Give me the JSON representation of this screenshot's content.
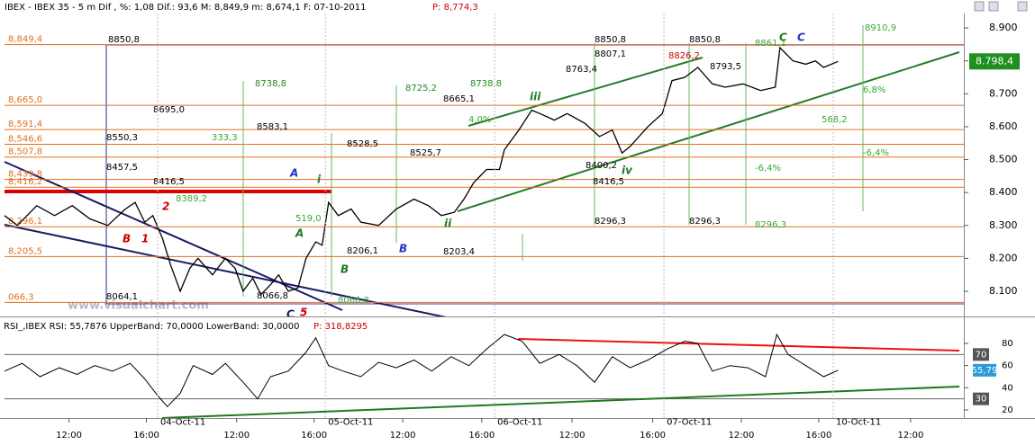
{
  "chart_data": [
    {
      "type": "line",
      "title": "IBEX - IBEX 35 -   5 m Dif , %: 1,08 Dif.: 93,6 M: 8,849,9 m: 8,674,1 F: 07-10-2011",
      "subtitle": "P: 8,774,3",
      "xlim": [
        0,
        595
      ],
      "ylim": [
        8029,
        8944
      ],
      "yticks": [
        {
          "value": 8900,
          "label": "8.900"
        },
        {
          "value": 8800,
          "label": "8.800"
        },
        {
          "value": 8700,
          "label": "8.700"
        },
        {
          "value": 8600,
          "label": "8.600"
        },
        {
          "value": 8500,
          "label": "8.500"
        },
        {
          "value": 8400,
          "label": "8.400"
        },
        {
          "value": 8300,
          "label": "8.300"
        },
        {
          "value": 8200,
          "label": "8.200"
        },
        {
          "value": 8100,
          "label": "8.100"
        }
      ],
      "series": [
        {
          "color": "#000000",
          "x": [
            0,
            8,
            20,
            31,
            42,
            53,
            64,
            75,
            81,
            87,
            92,
            98,
            103,
            109,
            115,
            120,
            129,
            137,
            143,
            148,
            154,
            159,
            165,
            170,
            176,
            182,
            187,
            193,
            197,
            201,
            207,
            215,
            221,
            232,
            243,
            254,
            263,
            271,
            279,
            285,
            291,
            299,
            307,
            310,
            319,
            327,
            332,
            341,
            349,
            360,
            369,
            377,
            383,
            388,
            399,
            408,
            414,
            422,
            430,
            439,
            447,
            458,
            469,
            478,
            481,
            489,
            497,
            503,
            508,
            517
          ],
          "values": [
            8330,
            8300,
            8360,
            8330,
            8360,
            8320,
            8300,
            8350,
            8370,
            8310,
            8330,
            8260,
            8180,
            8100,
            8170,
            8200,
            8150,
            8200,
            8170,
            8100,
            8140,
            8090,
            8120,
            8150,
            8100,
            8110,
            8200,
            8250,
            8240,
            8370,
            8330,
            8350,
            8310,
            8300,
            8350,
            8380,
            8360,
            8330,
            8340,
            8380,
            8430,
            8470,
            8470,
            8530,
            8590,
            8650,
            8640,
            8620,
            8640,
            8610,
            8570,
            8590,
            8520,
            8540,
            8600,
            8640,
            8740,
            8750,
            8780,
            8730,
            8720,
            8730,
            8710,
            8720,
            8840,
            8800,
            8790,
            8800,
            8780,
            8798.4
          ]
        }
      ],
      "last": {
        "value": 8798.4,
        "label": "8.798,4",
        "color": "#1f8f1f"
      },
      "levels": [
        {
          "value": 8849.4,
          "label": "8,849,4",
          "color": "#e07020"
        },
        {
          "value": 8665,
          "label": "8,665,0",
          "color": "#e07020"
        },
        {
          "value": 8591.4,
          "label": "8,591,4",
          "color": "#e07020"
        },
        {
          "value": 8546.6,
          "label": "8,546,6",
          "color": "#e07020"
        },
        {
          "value": 8507.8,
          "label": "8,507,8",
          "color": "#e07020"
        },
        {
          "value": 8439.8,
          "label": "8,439,8",
          "color": "#e07020"
        },
        {
          "value": 8416.2,
          "label": "8,416,2",
          "color": "#e07020"
        },
        {
          "value": 8296.1,
          "label": "8,296,1",
          "color": "#e07020"
        },
        {
          "value": 8205.5,
          "label": "8,205,5",
          "color": "#e07020"
        },
        {
          "value": 8066.3,
          "label": "066,3",
          "color": "#e07020"
        }
      ],
      "notes": [
        {
          "text": "8850,8",
          "color": "#000000"
        },
        {
          "text": "8850,8",
          "color": "#000000"
        },
        {
          "text": "8850,8",
          "color": "#000000"
        },
        {
          "text": "8807,1",
          "color": "#000000"
        },
        {
          "text": "8763,4",
          "color": "#000000"
        },
        {
          "text": "8793,5",
          "color": "#000000"
        },
        {
          "text": "8826,2",
          "color": "#cc0000"
        },
        {
          "text": "8861,1",
          "color": "#33aa33"
        },
        {
          "text": "8910,9",
          "color": "#33aa33"
        },
        {
          "text": "8738,8",
          "color": "#228822"
        },
        {
          "text": "8725,2",
          "color": "#228822"
        },
        {
          "text": "8738,8",
          "color": "#228822"
        },
        {
          "text": "8695,0",
          "color": "#000000"
        },
        {
          "text": "8665,1",
          "color": "#000000"
        },
        {
          "text": "8583,1",
          "color": "#000000"
        },
        {
          "text": "8550,3",
          "color": "#000000"
        },
        {
          "text": "8528,5",
          "color": "#000000"
        },
        {
          "text": "8525,7",
          "color": "#000000"
        },
        {
          "text": "8457,5",
          "color": "#000000"
        },
        {
          "text": "8416,5",
          "color": "#000000"
        },
        {
          "text": "8416,5",
          "color": "#000000"
        },
        {
          "text": "8400,2",
          "color": "#000000"
        },
        {
          "text": "8389,2",
          "color": "#33aa33"
        },
        {
          "text": "8296,3",
          "color": "#000000"
        },
        {
          "text": "8296,3",
          "color": "#000000"
        },
        {
          "text": "8296,3",
          "color": "#33aa33"
        },
        {
          "text": "8203,4",
          "color": "#000000"
        },
        {
          "text": "8206,1",
          "color": "#000000"
        },
        {
          "text": "8064,1",
          "color": "#000000"
        },
        {
          "text": "8066,8",
          "color": "#000000"
        },
        {
          "text": "8066,8",
          "color": "#33aa33"
        },
        {
          "text": "6,8%",
          "color": "#33aa33"
        },
        {
          "text": "-6,4%",
          "color": "#33aa33"
        },
        {
          "text": "568,2",
          "color": "#33aa33"
        },
        {
          "text": "333,3",
          "color": "#33aa33"
        },
        {
          "text": "519,0",
          "color": "#33aa33"
        },
        {
          "text": "4,0%",
          "color": "#33aa33"
        },
        {
          "text": "-6,4%",
          "color": "#33aa33"
        },
        {
          "text": "C",
          "color": "#1f7a1f"
        },
        {
          "text": "C",
          "color": "#2233cc"
        },
        {
          "text": "iii",
          "color": "#1f7a1f"
        },
        {
          "text": "iv",
          "color": "#1f7a1f"
        },
        {
          "text": "ii",
          "color": "#1f7a1f"
        },
        {
          "text": "i",
          "color": "#1f7a1f"
        },
        {
          "text": "A",
          "color": "#2233cc"
        },
        {
          "text": "B",
          "color": "#2233cc"
        },
        {
          "text": "A",
          "color": "#1f7a1f"
        },
        {
          "text": "B",
          "color": "#1f7a1f"
        },
        {
          "text": "C",
          "color": "#1a1a66"
        },
        {
          "text": "5",
          "color": "#cc0000"
        },
        {
          "text": "1",
          "color": "#cc0000"
        },
        {
          "text": "2",
          "color": "#cc0000"
        },
        {
          "text": "B",
          "color": "#cc0000"
        }
      ],
      "watermark": "www.visualchart.com"
    },
    {
      "type": "line",
      "title": "RSI_,IBEX RSI: 55,7876 UpperBand: 70,0000 LowerBand: 30,0000",
      "subtitle": "P: 318,8295",
      "xlim": [
        0,
        595
      ],
      "ylim": [
        12.7,
        101.9
      ],
      "yticks": [
        80,
        60,
        40,
        20
      ],
      "bands": [
        70,
        30
      ],
      "xticks": [
        {
          "value": 40,
          "label": "12:00"
        },
        {
          "value": 88,
          "label": "16:00"
        },
        {
          "value": 144,
          "label": "12:00"
        },
        {
          "value": 192,
          "label": "16:00"
        },
        {
          "value": 247,
          "label": "12:00"
        },
        {
          "value": 296,
          "label": "16:00"
        },
        {
          "value": 352,
          "label": "12:00"
        },
        {
          "value": 402,
          "label": "16:00"
        },
        {
          "value": 457,
          "label": "12:00"
        },
        {
          "value": 505,
          "label": "16:00"
        },
        {
          "value": 562,
          "label": "12:00"
        }
      ],
      "date_ticks": [
        {
          "value": 95,
          "label": "04-Oct-11"
        },
        {
          "value": 199,
          "label": "05-Oct-11"
        },
        {
          "value": 304,
          "label": "06-Oct-11"
        },
        {
          "value": 409,
          "label": "07-Oct-11"
        },
        {
          "value": 514,
          "label": "10-Oct-11"
        }
      ],
      "series": [
        {
          "color": "#000000",
          "x": [
            0,
            11,
            22,
            34,
            45,
            56,
            67,
            78,
            87,
            95,
            101,
            109,
            117,
            129,
            137,
            148,
            157,
            165,
            176,
            187,
            193,
            201,
            210,
            221,
            232,
            243,
            254,
            265,
            277,
            288,
            299,
            310,
            321,
            332,
            344,
            355,
            366,
            377,
            388,
            399,
            411,
            422,
            430,
            439,
            450,
            461,
            472,
            479,
            486,
            497,
            508,
            517
          ],
          "values": [
            55,
            62,
            50,
            58,
            52,
            60,
            55,
            62,
            48,
            33,
            23,
            35,
            60,
            52,
            62,
            45,
            30,
            50,
            55,
            72,
            85,
            60,
            55,
            50,
            63,
            58,
            65,
            55,
            68,
            60,
            75,
            88,
            82,
            62,
            70,
            60,
            45,
            68,
            58,
            65,
            75,
            82,
            80,
            55,
            60,
            58,
            50,
            88,
            70,
            60,
            50,
            55.79
          ]
        }
      ],
      "last": {
        "value": 55.79,
        "label": "55,79",
        "color": "#2a9ad8"
      }
    }
  ]
}
